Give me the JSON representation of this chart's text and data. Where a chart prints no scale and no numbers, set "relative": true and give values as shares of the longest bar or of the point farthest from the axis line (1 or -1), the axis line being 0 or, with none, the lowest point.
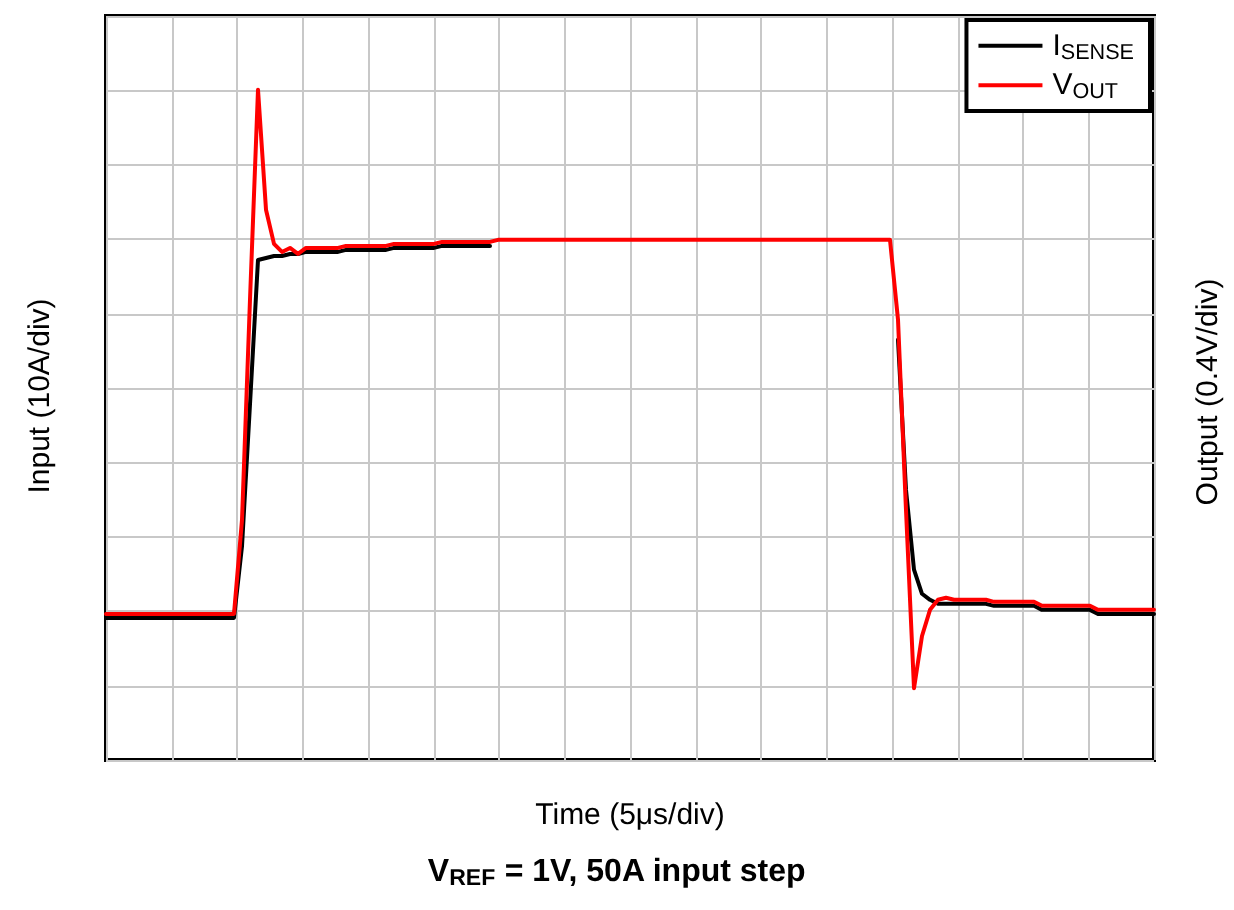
{
  "chart_data": {
    "type": "line",
    "title": "V$_{REF}$ = 1V, 50A input step",
    "xlabel": "Time (5μs/div)",
    "ylabel": "Input (10A/div)",
    "y2label": "Output (0.4V/div)",
    "relative": true,
    "grid": true,
    "legend": "top right",
    "categories": [
      null,
      null,
      null,
      null,
      null,
      null,
      null,
      null,
      null,
      null,
      null,
      null,
      null,
      null,
      null,
      null,
      null,
      null,
      null,
      null,
      null,
      null,
      null,
      null,
      null,
      null,
      null,
      null,
      null,
      null,
      null,
      null,
      null,
      null,
      null,
      null,
      null,
      null,
      null,
      null,
      null,
      null,
      null,
      null,
      null,
      null,
      null,
      null,
      null,
      null,
      null,
      null,
      null,
      null,
      null,
      null,
      null,
      null,
      null,
      null,
      null,
      null,
      null,
      null,
      null,
      null,
      null,
      null,
      null,
      null,
      null,
      null,
      null,
      null,
      null,
      null,
      null,
      null,
      null,
      null,
      null,
      null,
      null,
      null,
      null,
      null,
      null,
      null,
      null,
      null,
      null,
      null,
      null,
      null,
      null,
      null,
      null,
      null,
      null,
      null,
      null,
      null,
      null,
      null,
      null,
      null,
      null,
      null,
      null,
      null,
      null,
      null,
      null,
      null,
      null,
      null,
      null,
      null,
      null,
      null,
      null,
      null,
      null,
      null,
      null,
      null,
      null,
      null,
      null,
      null,
      null,
      null
    ],
    "series": [
      {
        "name": "I$_{SENSE}$",
        "color": "#000000",
        "values": [
          0.212,
          0.212,
          0.212,
          0.212,
          0.212,
          0.212,
          0.212,
          0.212,
          0.212,
          0.212,
          0.212,
          0.212,
          0.212,
          0.212,
          0.212,
          0.212,
          0.212,
          0.319,
          0.531,
          0.746,
          0.749,
          0.752,
          0.752,
          0.755,
          0.755,
          0.758,
          0.758,
          0.758,
          0.758,
          0.758,
          0.761,
          0.761,
          0.761,
          0.761,
          0.761,
          0.761,
          0.764,
          0.764,
          0.764,
          0.764,
          0.764,
          0.764,
          0.767,
          0.767,
          0.767,
          0.767,
          0.767,
          0.767,
          0.767,
          null,
          null,
          null,
          null,
          null,
          null,
          null,
          null,
          null,
          null,
          null,
          null,
          null,
          null,
          null,
          null,
          null,
          null,
          null,
          null,
          null,
          null,
          null,
          null,
          null,
          null,
          null,
          null,
          null,
          null,
          null,
          null,
          null,
          null,
          null,
          null,
          null,
          null,
          null,
          null,
          null,
          null,
          null,
          null,
          null,
          null,
          null,
          null,
          null,
          null,
          0.627,
          0.403,
          0.284,
          0.248,
          0.239,
          0.233,
          0.233,
          0.233,
          0.233,
          0.233,
          0.233,
          0.233,
          0.23,
          0.23,
          0.23,
          0.23,
          0.23,
          0.23,
          0.224,
          0.224,
          0.224,
          0.224,
          0.224,
          0.224,
          0.224,
          0.218,
          0.218,
          0.218,
          0.218,
          0.218,
          0.218,
          0.218,
          0.218
        ]
      },
      {
        "name": "V$_{OUT}$",
        "color": "#ff0000",
        "values": [
          0.218,
          0.218,
          0.218,
          0.218,
          0.218,
          0.218,
          0.218,
          0.218,
          0.218,
          0.218,
          0.218,
          0.218,
          0.218,
          0.218,
          0.218,
          0.218,
          0.218,
          0.358,
          0.687,
          1,
          0.821,
          0.77,
          0.758,
          0.764,
          0.755,
          0.764,
          0.764,
          0.764,
          0.764,
          0.764,
          0.767,
          0.767,
          0.767,
          0.767,
          0.767,
          0.767,
          0.77,
          0.77,
          0.77,
          0.77,
          0.77,
          0.77,
          0.773,
          0.773,
          0.773,
          0.773,
          0.773,
          0.773,
          0.773,
          0.776,
          0.776,
          0.776,
          0.776,
          0.776,
          0.776,
          0.776,
          0.776,
          0.776,
          0.776,
          0.776,
          0.776,
          0.776,
          0.776,
          0.776,
          0.776,
          0.776,
          0.776,
          0.776,
          0.776,
          0.776,
          0.776,
          0.776,
          0.776,
          0.776,
          0.776,
          0.776,
          0.776,
          0.776,
          0.776,
          0.776,
          0.776,
          0.776,
          0.776,
          0.776,
          0.776,
          0.776,
          0.776,
          0.776,
          0.776,
          0.776,
          0.776,
          0.776,
          0.776,
          0.776,
          0.776,
          0.776,
          0.776,
          0.776,
          0.776,
          0.657,
          0.373,
          0.107,
          0.185,
          0.224,
          0.239,
          0.242,
          0.239,
          0.239,
          0.239,
          0.239,
          0.239,
          0.236,
          0.236,
          0.236,
          0.236,
          0.236,
          0.236,
          0.23,
          0.23,
          0.23,
          0.23,
          0.23,
          0.23,
          0.23,
          0.224,
          0.224,
          0.224,
          0.224,
          0.224,
          0.224,
          0.224,
          0.224
        ]
      }
    ]
  }
}
